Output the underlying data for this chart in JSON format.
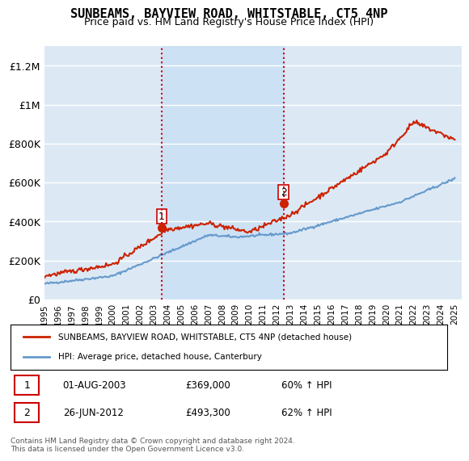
{
  "title": "SUNBEAMS, BAYVIEW ROAD, WHITSTABLE, CT5 4NP",
  "subtitle": "Price paid vs. HM Land Registry's House Price Index (HPI)",
  "ylabel": "",
  "bg_color": "#ffffff",
  "chart_bg_color": "#dce9f5",
  "grid_color": "#ffffff",
  "ylim": [
    0,
    1300000
  ],
  "yticks": [
    0,
    200000,
    400000,
    600000,
    800000,
    1000000,
    1200000
  ],
  "ytick_labels": [
    "£0",
    "£200K",
    "£400K",
    "£600K",
    "£800K",
    "£1M",
    "£1.2M"
  ],
  "sale1_date_x": 2003.58,
  "sale1_price": 369000,
  "sale2_date_x": 2012.48,
  "sale2_price": 493300,
  "vline_color": "#cc0000",
  "vline_style": ":",
  "sale_marker_color": "#cc2200",
  "hpi_line_color": "#6699cc",
  "price_line_color": "#cc2200",
  "shade_color": "#c8dff5",
  "legend_label_price": "SUNBEAMS, BAYVIEW ROAD, WHITSTABLE, CT5 4NP (detached house)",
  "legend_label_hpi": "HPI: Average price, detached house, Canterbury",
  "table_rows": [
    {
      "num": "1",
      "date": "01-AUG-2003",
      "price": "£369,000",
      "change": "60% ↑ HPI"
    },
    {
      "num": "2",
      "date": "26-JUN-2012",
      "price": "£493,300",
      "change": "62% ↑ HPI"
    }
  ],
  "footnote": "Contains HM Land Registry data © Crown copyright and database right 2024.\nThis data is licensed under the Open Government Licence v3.0.",
  "xmin": 1995,
  "xmax": 2025.5
}
